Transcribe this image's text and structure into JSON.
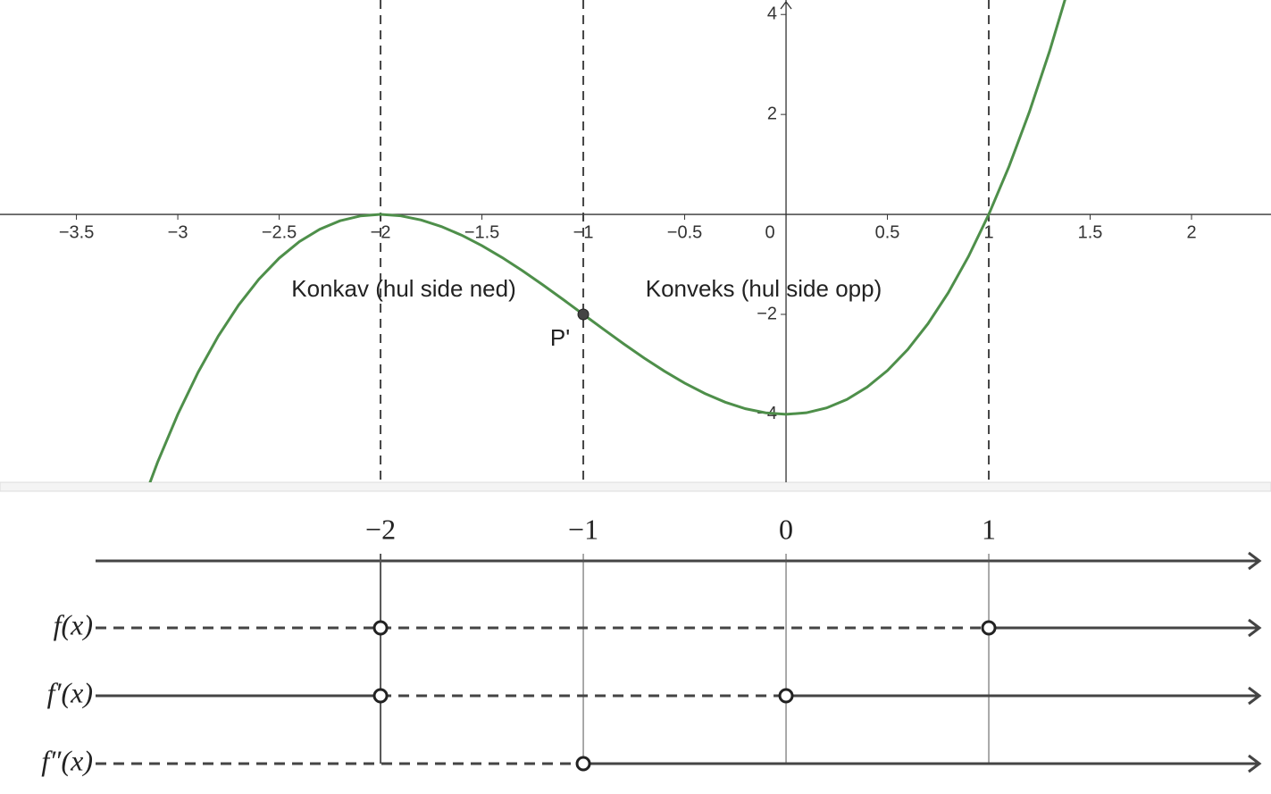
{
  "chart_data": {
    "type": "line",
    "xlim": [
      -3.877,
      2.392
    ],
    "ylim": [
      -5.36,
      4.29
    ],
    "xticks": [
      {
        "value": -3.5,
        "label": "−3.5"
      },
      {
        "value": -3,
        "label": "−3"
      },
      {
        "value": -2.5,
        "label": "−2.5"
      },
      {
        "value": -2,
        "label": "−2"
      },
      {
        "value": -1.5,
        "label": "−1.5"
      },
      {
        "value": -1,
        "label": "−1"
      },
      {
        "value": -0.5,
        "label": "−0.5"
      },
      0,
      0.5,
      1,
      1.5,
      2
    ],
    "yticks": [
      {
        "value": -4,
        "label": "−4"
      },
      {
        "value": -2,
        "label": "−2"
      },
      2,
      4
    ],
    "x": [
      -3.2,
      -3.1,
      -3.0,
      -2.9,
      -2.8,
      -2.7,
      -2.6,
      -2.5,
      -2.4,
      -2.3,
      -2.2,
      -2.1,
      -2.0,
      -1.9,
      -1.8,
      -1.7,
      -1.6,
      -1.5,
      -1.4,
      -1.3,
      -1.2,
      -1.1,
      -1.0,
      -0.9,
      -0.8,
      -0.7,
      -0.6,
      -0.5,
      -0.4,
      -0.3,
      -0.2,
      -0.1,
      0,
      0.1,
      0.2,
      0.3,
      0.4,
      0.5,
      0.6,
      0.7,
      0.8,
      0.9,
      1.0,
      1.1,
      1.2,
      1.3,
      1.4
    ],
    "series": [
      {
        "color": "#4e8f4a",
        "values": [
          -6.048,
          -4.961,
          -4,
          -3.159,
          -2.432,
          -1.813,
          -1.296,
          -0.875,
          -0.544,
          -0.297,
          -0.128,
          -0.031,
          0,
          -0.029,
          -0.112,
          -0.243,
          -0.416,
          -0.625,
          -0.864,
          -1.127,
          -1.408,
          -1.701,
          -2,
          -2.299,
          -2.592,
          -2.873,
          -3.136,
          -3.375,
          -3.584,
          -3.757,
          -3.888,
          -3.971,
          -4,
          -3.969,
          -3.872,
          -3.703,
          -3.456,
          -3.125,
          -2.704,
          -2.187,
          -1.568,
          -0.841,
          0,
          0.961,
          2.048,
          3.267,
          4.624
        ]
      }
    ],
    "vlines": [
      -2,
      -1,
      1
    ],
    "points": [
      {
        "label": "P'",
        "x": -1,
        "y": -2
      }
    ],
    "annotations": [
      "Konkav (hul side ned)",
      "Konveks (hul side opp)"
    ]
  },
  "sign_chart": {
    "ticks": [
      {
        "value": -2,
        "label": "−2"
      },
      {
        "value": -1,
        "label": "−1"
      },
      0,
      1
    ],
    "rows": [
      {
        "label": "f(x)",
        "zeros": [
          -2,
          1
        ],
        "signs": [
          "−",
          "−",
          "+"
        ]
      },
      {
        "label": "f′(x)",
        "zeros": [
          -2,
          0
        ],
        "signs": [
          "+",
          "−",
          "+"
        ]
      },
      {
        "label": "f″(x)",
        "zeros": [
          -1
        ],
        "signs": [
          "−",
          "+"
        ]
      }
    ]
  }
}
